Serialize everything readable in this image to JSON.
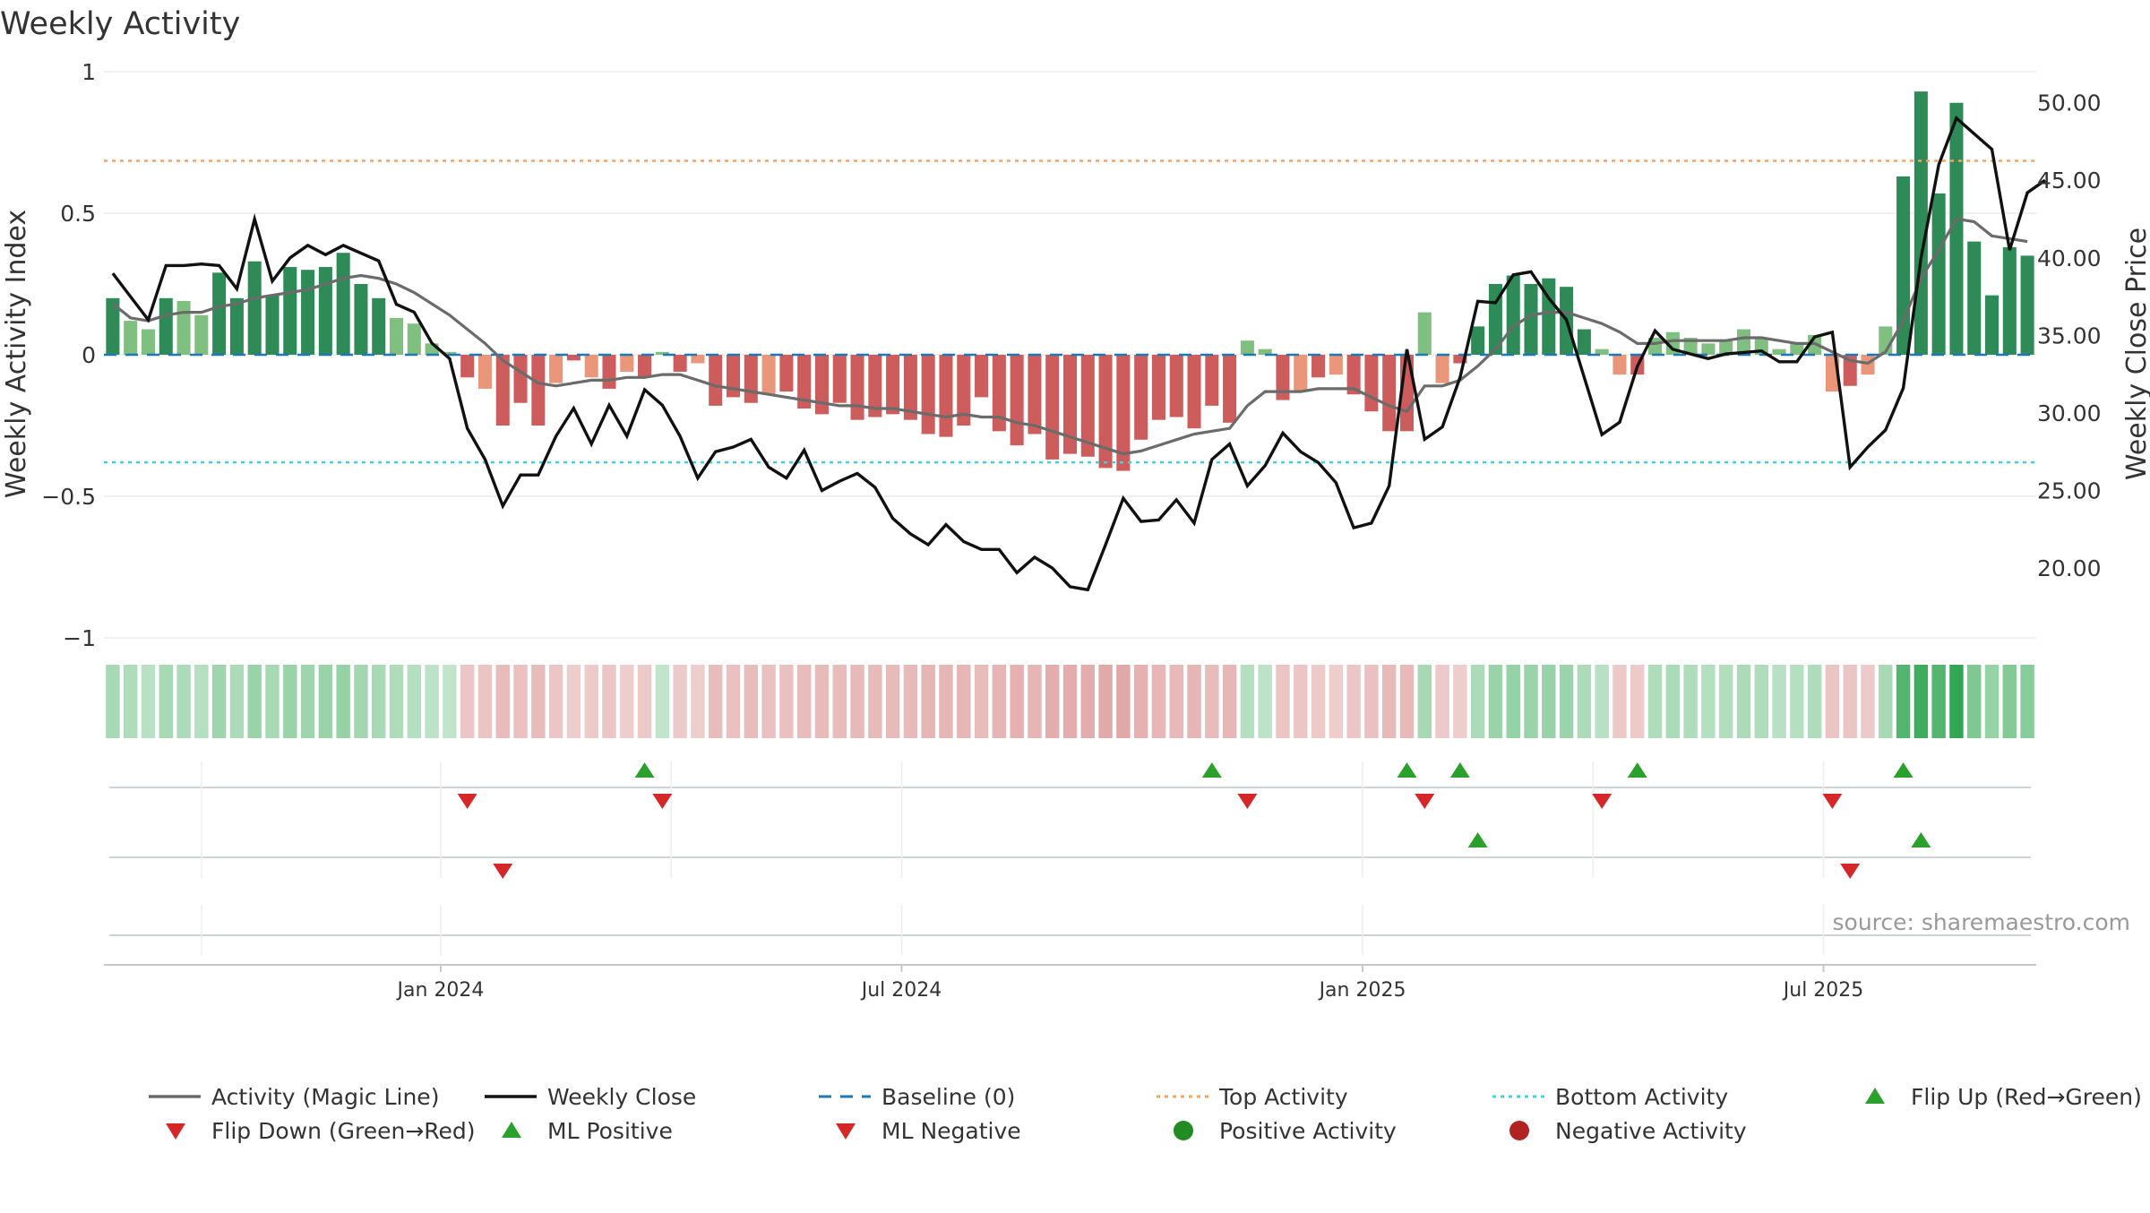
{
  "chart_data": {
    "type": "bar",
    "title": "Weekly Activity",
    "ylabel": "Weekly Activity Index",
    "y2label": "Weekly Close Price",
    "ylim": [
      -1,
      1
    ],
    "y2lim": [
      15.5,
      52
    ],
    "yticks": [
      "1",
      "0.5",
      "0",
      "−0.5",
      "−1"
    ],
    "ytick_values": [
      1,
      0.5,
      0,
      -0.5,
      -1
    ],
    "y2ticks": [
      "50.00",
      "45.00",
      "40.00",
      "35.00",
      "30.00",
      "25.00",
      "20.00"
    ],
    "y2tick_values": [
      50,
      45,
      40,
      35,
      30,
      25,
      20
    ],
    "xticks": [
      "Jan 2024",
      "Jul 2024",
      "Jan 2025",
      "Jul 2025"
    ],
    "xtick_week_index": [
      18.5,
      44.5,
      70.5,
      96.5
    ],
    "top_activity": 0.685,
    "bottom_activity": -0.38,
    "grid": true,
    "legend_position": "bottom",
    "source": "source: sharemaestro.com",
    "colors": {
      "pos_strong": "#2e8b57",
      "pos_weak": "#7fbf7f",
      "neg_strong": "#cd5c5c",
      "neg_weak": "#e9967a",
      "magic": "#6b6b6b",
      "close": "#111111",
      "baseline": "#1f77b4",
      "top": "#f4a460",
      "bottom": "#40d0e0",
      "flip_up": "#2ca02c",
      "flip_down": "#d62728",
      "pos_dot": "#228b22",
      "neg_dot": "#b22222"
    },
    "activity": [
      0.2,
      0.12,
      0.09,
      0.2,
      0.19,
      0.14,
      0.29,
      0.2,
      0.33,
      0.21,
      0.31,
      0.3,
      0.31,
      0.36,
      0.25,
      0.2,
      0.13,
      0.11,
      0.04,
      0.01,
      -0.08,
      -0.12,
      -0.25,
      -0.17,
      -0.25,
      -0.1,
      -0.02,
      -0.08,
      -0.12,
      -0.06,
      -0.08,
      0.01,
      -0.06,
      -0.03,
      -0.18,
      -0.15,
      -0.17,
      -0.14,
      -0.13,
      -0.19,
      -0.21,
      -0.17,
      -0.23,
      -0.22,
      -0.21,
      -0.23,
      -0.28,
      -0.29,
      -0.25,
      -0.15,
      -0.27,
      -0.32,
      -0.28,
      -0.37,
      -0.35,
      -0.36,
      -0.4,
      -0.41,
      -0.3,
      -0.23,
      -0.22,
      -0.26,
      -0.18,
      -0.24,
      0.05,
      0.02,
      -0.16,
      -0.13,
      -0.08,
      -0.07,
      -0.14,
      -0.2,
      -0.27,
      -0.27,
      0.15,
      -0.1,
      -0.03,
      0.1,
      0.25,
      0.28,
      0.25,
      0.27,
      0.24,
      0.09,
      0.02,
      -0.07,
      -0.07,
      0.06,
      0.08,
      0.06,
      0.04,
      0.05,
      0.09,
      0.06,
      0.02,
      0.04,
      0.07,
      -0.13,
      -0.11,
      -0.07,
      0.1,
      0.63,
      0.93,
      0.57,
      0.89,
      0.4,
      0.21,
      0.38,
      0.35
    ],
    "magic_line": [
      0.18,
      0.13,
      0.12,
      0.14,
      0.15,
      0.15,
      0.17,
      0.18,
      0.2,
      0.21,
      0.22,
      0.23,
      0.25,
      0.27,
      0.28,
      0.27,
      0.25,
      0.22,
      0.18,
      0.14,
      0.09,
      0.04,
      -0.02,
      -0.06,
      -0.1,
      -0.11,
      -0.1,
      -0.09,
      -0.09,
      -0.08,
      -0.08,
      -0.07,
      -0.07,
      -0.09,
      -0.11,
      -0.12,
      -0.13,
      -0.14,
      -0.15,
      -0.16,
      -0.17,
      -0.18,
      -0.18,
      -0.19,
      -0.19,
      -0.2,
      -0.21,
      -0.22,
      -0.21,
      -0.22,
      -0.22,
      -0.24,
      -0.25,
      -0.27,
      -0.29,
      -0.31,
      -0.33,
      -0.35,
      -0.34,
      -0.32,
      -0.3,
      -0.28,
      -0.27,
      -0.26,
      -0.18,
      -0.13,
      -0.13,
      -0.13,
      -0.12,
      -0.12,
      -0.12,
      -0.15,
      -0.18,
      -0.2,
      -0.11,
      -0.11,
      -0.09,
      -0.04,
      0.02,
      0.1,
      0.14,
      0.15,
      0.15,
      0.13,
      0.11,
      0.08,
      0.04,
      0.04,
      0.05,
      0.05,
      0.05,
      0.05,
      0.06,
      0.06,
      0.05,
      0.04,
      0.04,
      0.01,
      -0.02,
      -0.03,
      0.01,
      0.12,
      0.27,
      0.37,
      0.48,
      0.47,
      0.42,
      0.41,
      0.4
    ],
    "weekly_close": [
      39.0,
      37.5,
      36.0,
      39.5,
      39.5,
      39.6,
      39.5,
      38.0,
      42.5,
      38.5,
      40.0,
      40.8,
      40.2,
      40.8,
      40.3,
      39.8,
      37.0,
      36.5,
      34.5,
      33.5,
      29.0,
      27.0,
      24.0,
      26.0,
      26.0,
      28.5,
      30.3,
      28.0,
      30.5,
      28.5,
      31.5,
      30.5,
      28.5,
      25.8,
      27.5,
      27.8,
      28.3,
      26.5,
      25.8,
      27.6,
      25.0,
      25.6,
      26.1,
      25.2,
      23.2,
      22.2,
      21.5,
      22.8,
      21.7,
      21.2,
      21.2,
      19.7,
      20.7,
      20.0,
      18.8,
      18.6,
      21.5,
      24.5,
      23.0,
      23.1,
      24.4,
      22.9,
      27.0,
      28.0,
      25.3,
      26.6,
      28.7,
      27.5,
      26.8,
      25.5,
      22.6,
      22.9,
      25.3,
      34.1,
      28.3,
      29.1,
      32.3,
      37.2,
      37.1,
      38.9,
      39.1,
      37.4,
      36.0,
      32.3,
      28.6,
      29.4,
      33.0,
      35.3,
      34.1,
      33.8,
      33.5,
      33.8,
      33.9,
      34.0,
      33.3,
      33.3,
      34.9,
      35.2,
      26.5,
      27.8,
      28.9,
      31.6,
      40.0,
      46.0,
      49.0,
      48.0,
      47.0,
      40.5,
      44.2,
      45.0
    ],
    "strength_band": [
      0.22,
      0.18,
      0.14,
      0.22,
      0.2,
      0.16,
      0.26,
      0.2,
      0.28,
      0.22,
      0.28,
      0.26,
      0.28,
      0.3,
      0.24,
      0.22,
      0.18,
      0.16,
      0.12,
      0.1,
      -0.18,
      -0.2,
      -0.25,
      -0.22,
      -0.25,
      -0.18,
      -0.14,
      -0.16,
      -0.18,
      -0.15,
      -0.16,
      0.1,
      -0.16,
      -0.14,
      -0.24,
      -0.22,
      -0.24,
      -0.22,
      -0.22,
      -0.25,
      -0.26,
      -0.24,
      -0.27,
      -0.26,
      -0.26,
      -0.27,
      -0.3,
      -0.3,
      -0.28,
      -0.24,
      -0.29,
      -0.32,
      -0.3,
      -0.35,
      -0.34,
      -0.35,
      -0.37,
      -0.38,
      -0.32,
      -0.28,
      -0.27,
      -0.29,
      -0.25,
      -0.28,
      0.16,
      0.12,
      -0.2,
      -0.18,
      -0.16,
      -0.15,
      -0.18,
      -0.22,
      -0.27,
      -0.27,
      0.22,
      -0.17,
      -0.15,
      0.2,
      0.28,
      0.3,
      0.28,
      0.29,
      0.27,
      0.2,
      0.14,
      -0.16,
      -0.16,
      0.18,
      0.2,
      0.18,
      0.16,
      0.17,
      0.2,
      0.18,
      0.14,
      0.16,
      0.18,
      -0.2,
      -0.19,
      -0.16,
      0.22,
      0.6,
      0.7,
      0.6,
      0.75,
      0.4,
      0.3,
      0.38,
      0.36
    ],
    "flip_up_row1": [
      30,
      62,
      73,
      76,
      86,
      101
    ],
    "flip_down_row1": [
      20,
      31,
      64,
      74,
      84,
      97
    ],
    "flip_up_row2": [
      77,
      102
    ],
    "flip_down_row2": [
      22,
      98
    ],
    "legend": [
      {
        "label": "Activity (Magic Line)",
        "kind": "line",
        "color": "#6b6b6b"
      },
      {
        "label": "Weekly Close",
        "kind": "line",
        "color": "#111111"
      },
      {
        "label": "Baseline (0)",
        "kind": "dash",
        "color": "#1f77b4"
      },
      {
        "label": "Top Activity",
        "kind": "dot-line",
        "color": "#f4a460"
      },
      {
        "label": "Bottom Activity",
        "kind": "dot-line",
        "color": "#40d0e0"
      },
      {
        "label": "Flip Up (Red→Green)",
        "kind": "tri-up",
        "color": "#2ca02c"
      },
      {
        "label": "Flip Down (Green→Red)",
        "kind": "tri-down",
        "color": "#d62728"
      },
      {
        "label": "ML Positive",
        "kind": "tri-up",
        "color": "#2ca02c"
      },
      {
        "label": "ML Negative",
        "kind": "tri-down",
        "color": "#d62728"
      },
      {
        "label": "Positive Activity",
        "kind": "dot",
        "color": "#228b22"
      },
      {
        "label": "Negative Activity",
        "kind": "dot",
        "color": "#b22222"
      }
    ]
  }
}
